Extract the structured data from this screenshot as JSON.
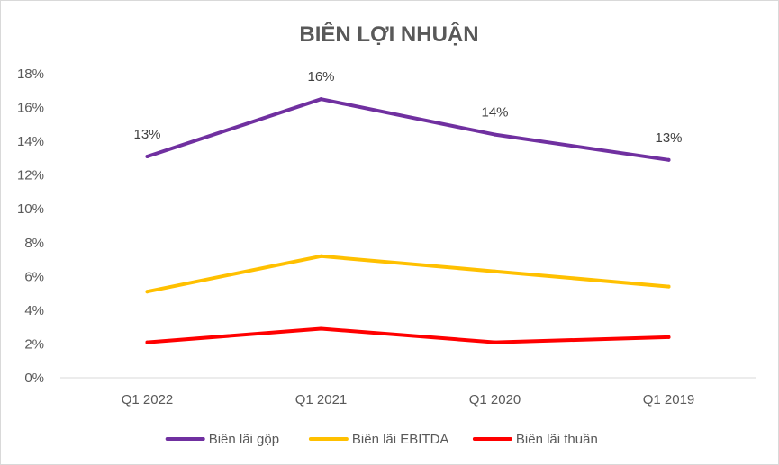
{
  "chart_data": {
    "type": "line",
    "title": "BIÊN LỢI NHUẬN",
    "xlabel": "",
    "ylabel": "",
    "categories": [
      "Q1 2022",
      "Q1 2021",
      "Q1 2020",
      "Q1 2019"
    ],
    "y_ticks": [
      "0%",
      "2%",
      "4%",
      "6%",
      "8%",
      "10%",
      "12%",
      "14%",
      "16%",
      "18%"
    ],
    "ylim": [
      0,
      18
    ],
    "grid": false,
    "legend_position": "bottom",
    "series": [
      {
        "name": "Biên lãi gộp",
        "color": "#7030A0",
        "values": [
          13.1,
          16.5,
          14.4,
          12.9
        ],
        "data_labels": [
          "13%",
          "16%",
          "14%",
          "13%"
        ]
      },
      {
        "name": "Biên lãi EBITDA",
        "color": "#FFC000",
        "values": [
          5.1,
          7.2,
          6.3,
          5.4
        ],
        "data_labels": []
      },
      {
        "name": "Biên lãi thuần",
        "color": "#FF0000",
        "values": [
          2.1,
          2.9,
          2.1,
          2.4
        ],
        "data_labels": []
      }
    ]
  }
}
